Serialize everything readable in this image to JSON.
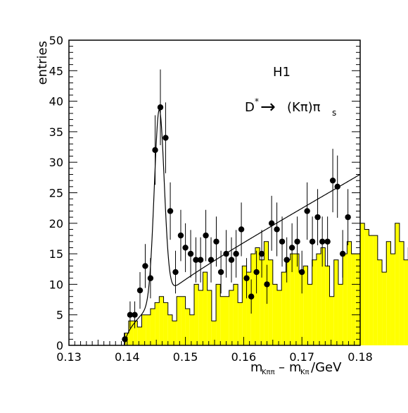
{
  "chart_data": {
    "type": "histogram",
    "experiment_label": "H1",
    "decay_label": {
      "main": "D",
      "superscript": "*",
      "arrow": "→",
      "products": "(Kπ)π",
      "subscript": "s"
    },
    "xlabel": {
      "m1": "m",
      "sub1": "Kππ",
      "minus": "–",
      "m2": "m",
      "sub2": "Kπ",
      "unit": "/GeV"
    },
    "ylabel": "entries",
    "xlim": [
      0.13,
      0.18
    ],
    "ylim": [
      0,
      50
    ],
    "x_ticks": [
      "0.13",
      "0.14",
      "0.15",
      "0.16",
      "0.17",
      "0.18"
    ],
    "x_tick_values": [
      0.13,
      0.14,
      0.15,
      0.16,
      0.17,
      0.18
    ],
    "y_ticks": [
      "0",
      "5",
      "10",
      "15",
      "20",
      "25",
      "30",
      "35",
      "40",
      "45",
      "50"
    ],
    "y_tick_values": [
      0,
      5,
      10,
      15,
      20,
      25,
      30,
      35,
      40,
      45,
      50
    ],
    "grid": false,
    "colors": {
      "histogram_fill": "#ffff00",
      "histogram_edge": "#000000",
      "points": "#000000",
      "fit": "#000000"
    },
    "series": [
      {
        "kind": "wrong-charge-background histogram",
        "bin_width": 0.00075,
        "start": 0.1395,
        "values": [
          2,
          4,
          4,
          3,
          5,
          5,
          6,
          7,
          8,
          7,
          5,
          4,
          8,
          8,
          6,
          5,
          10,
          9,
          12,
          9,
          4,
          10,
          8,
          8,
          9,
          10,
          7,
          13,
          12,
          15,
          16,
          14,
          17,
          14,
          10,
          9,
          12,
          14,
          15,
          15,
          12,
          13,
          10,
          14,
          15,
          16,
          13,
          8,
          14,
          10,
          15,
          17,
          15,
          15,
          20,
          19,
          18,
          18,
          14,
          12,
          17,
          15,
          20,
          17,
          14,
          16,
          17,
          16,
          17,
          20,
          18,
          17,
          18,
          16,
          18,
          17,
          18,
          17,
          18,
          22,
          19,
          17,
          20,
          18,
          21,
          24,
          20
        ]
      },
      {
        "kind": "right-charge data points",
        "x": [
          0.1396,
          0.1405,
          0.1413,
          0.1422,
          0.1431,
          0.144,
          0.1448,
          0.1457,
          0.1466,
          0.1474,
          0.1483,
          0.1492,
          0.15,
          0.1509,
          0.1518,
          0.1526,
          0.1535,
          0.1544,
          0.1553,
          0.1561,
          0.157,
          0.1579,
          0.1587,
          0.1596,
          0.1605,
          0.1613,
          0.1622,
          0.1631,
          0.164,
          0.1648,
          0.1657,
          0.1666,
          0.1674,
          0.1683,
          0.1692,
          0.17,
          0.1709,
          0.1718,
          0.1727,
          0.1735,
          0.1744,
          0.1753,
          0.1761,
          0.177,
          0.1779
        ],
        "y": [
          1,
          5,
          5,
          9,
          13,
          11,
          32,
          39,
          34,
          22,
          12,
          18,
          16,
          15,
          14,
          14,
          18,
          14,
          17,
          12,
          15,
          14,
          15,
          19,
          11,
          8,
          12,
          15,
          10,
          20,
          19,
          17,
          14,
          16,
          17,
          12,
          22,
          17,
          21,
          17,
          17,
          27,
          26,
          15,
          21
        ],
        "err": [
          1,
          2.2,
          2.2,
          3,
          3.6,
          3.3,
          5.7,
          6.2,
          5.8,
          4.7,
          3.5,
          4.2,
          4,
          3.9,
          3.7,
          3.7,
          4.2,
          3.7,
          4.1,
          3.5,
          3.9,
          3.7,
          3.9,
          4.4,
          3.3,
          2.8,
          3.5,
          3.9,
          3.2,
          4.5,
          4.4,
          4.1,
          3.7,
          4,
          4.1,
          3.5,
          4.7,
          4.1,
          4.6,
          4.1,
          4.1,
          5.2,
          5.1,
          3.9,
          4.6
        ]
      },
      {
        "kind": "fit curve",
        "model": "gaussian peak plus threshold background",
        "peak_mean": 0.1455,
        "peak_sigma": 0.00085,
        "peak_amplitude": 31,
        "threshold": 0.13957,
        "background_norm": 10.5,
        "background_power": 0.55,
        "background_slope": 260
      }
    ]
  }
}
